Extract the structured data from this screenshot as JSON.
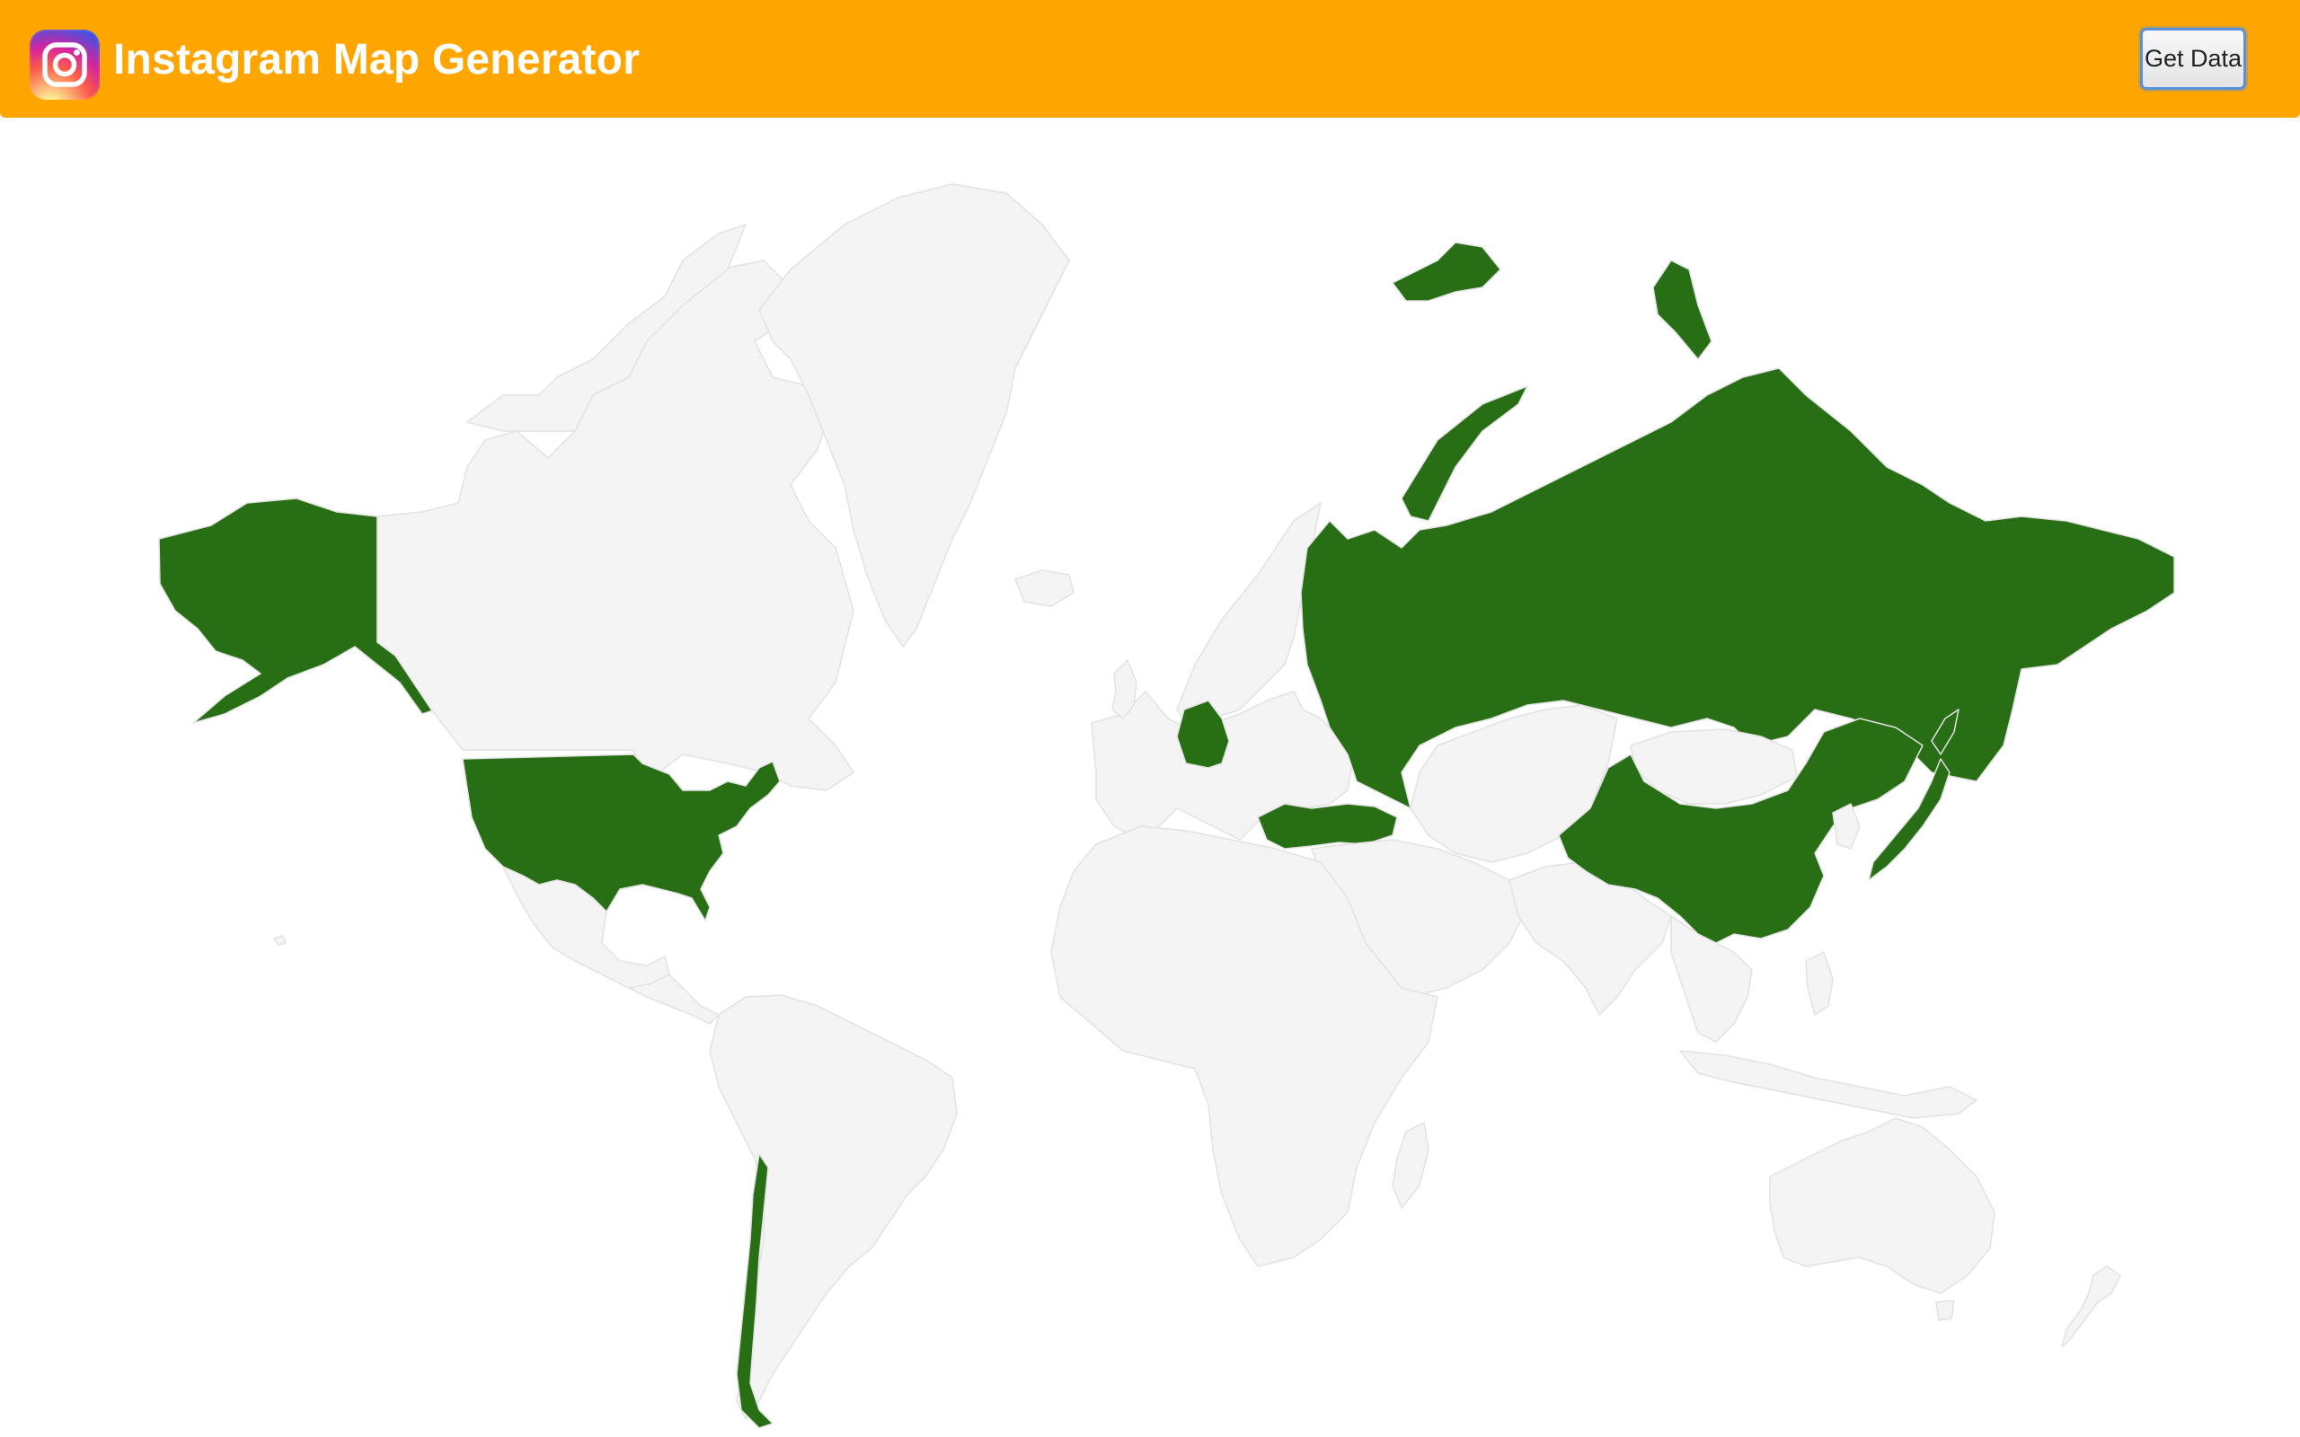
{
  "header": {
    "title": "Instagram Map Generator",
    "logo_icon": "instagram-icon",
    "get_data_label": "Get Data",
    "background_color": "#ffa500"
  },
  "map": {
    "type": "choropleth-world",
    "highlight_color": "#276e14",
    "base_color": "#f4f4f4",
    "border_color": "#e2e2e2",
    "highlighted_countries": [
      "United States",
      "Chile",
      "Germany",
      "Turkey",
      "Russia",
      "China",
      "Japan"
    ],
    "countries": [
      {
        "id": "alaska",
        "highlighted": true
      },
      {
        "id": "canada",
        "highlighted": false
      },
      {
        "id": "greenland",
        "highlighted": false
      },
      {
        "id": "usa",
        "highlighted": true
      },
      {
        "id": "mexico",
        "highlighted": false
      },
      {
        "id": "central-america",
        "highlighted": false
      },
      {
        "id": "south-america",
        "highlighted": false
      },
      {
        "id": "chile",
        "highlighted": true
      },
      {
        "id": "iceland",
        "highlighted": false
      },
      {
        "id": "europe",
        "highlighted": false
      },
      {
        "id": "scandinavia",
        "highlighted": false
      },
      {
        "id": "germany",
        "highlighted": true
      },
      {
        "id": "turkey",
        "highlighted": true
      },
      {
        "id": "russia",
        "highlighted": true
      },
      {
        "id": "russia-arctic-islands",
        "highlighted": true
      },
      {
        "id": "kazakhstan-central-asia",
        "highlighted": false
      },
      {
        "id": "middle-east",
        "highlighted": false
      },
      {
        "id": "africa",
        "highlighted": false
      },
      {
        "id": "madagascar",
        "highlighted": false
      },
      {
        "id": "india-south-asia",
        "highlighted": false
      },
      {
        "id": "mongolia",
        "highlighted": false
      },
      {
        "id": "china",
        "highlighted": true
      },
      {
        "id": "japan",
        "highlighted": true
      },
      {
        "id": "southeast-asia",
        "highlighted": false
      },
      {
        "id": "indonesia",
        "highlighted": false
      },
      {
        "id": "australia",
        "highlighted": false
      },
      {
        "id": "new-zealand",
        "highlighted": false
      }
    ]
  }
}
